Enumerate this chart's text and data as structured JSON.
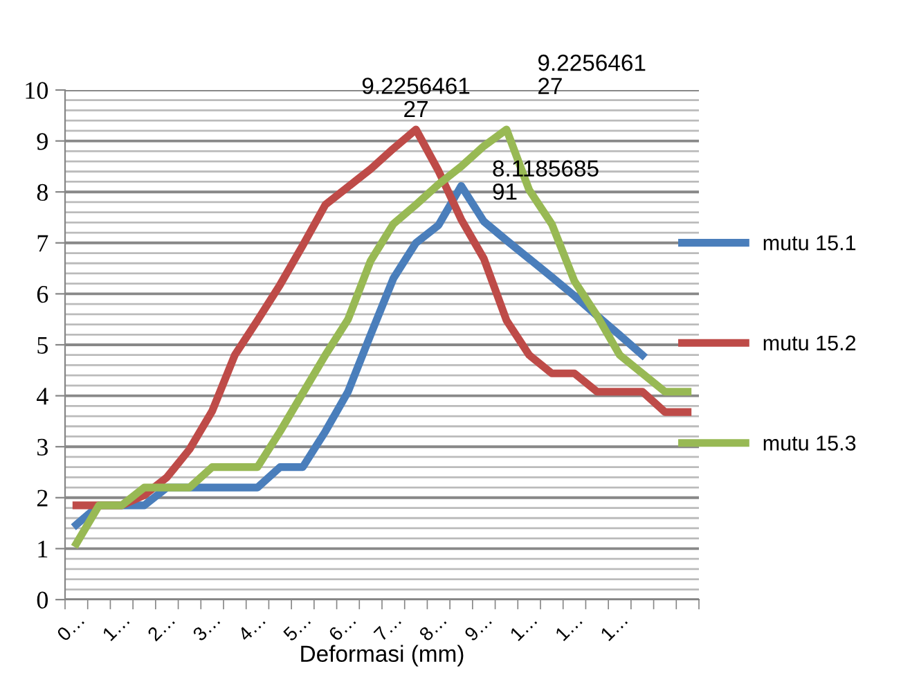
{
  "chart_data": {
    "type": "line",
    "xlabel": "Deformasi (mm)",
    "categories": [
      "0…",
      null,
      "1…",
      null,
      "2…",
      null,
      "3…",
      null,
      "4…",
      null,
      "5…",
      null,
      "6…",
      null,
      "7…",
      null,
      "8…",
      null,
      "9…",
      null,
      "1…",
      null,
      "1…",
      null,
      "1…",
      null,
      null,
      null
    ],
    "series": [
      {
        "name": "mutu 15.1",
        "color": "#4a7ebb",
        "values": [
          1.47,
          1.85,
          1.85,
          1.85,
          2.2,
          2.2,
          2.2,
          2.2,
          2.2,
          2.6,
          2.6,
          3.3,
          4.08,
          5.2,
          6.3,
          7.0,
          7.35,
          8.118568591,
          7.42,
          7.05,
          6.69,
          6.33,
          5.96,
          5.57,
          5.19,
          4.8,
          null,
          null
        ],
        "value_labels": [
          null,
          null,
          null,
          null,
          null,
          null,
          null,
          null,
          null,
          null,
          null,
          null,
          null,
          null,
          null,
          null,
          null,
          "8.118568591",
          null,
          null,
          null,
          null,
          null,
          null,
          null,
          null,
          null,
          null
        ]
      },
      {
        "name": "mutu 15.2",
        "color": "#be4b48",
        "values": [
          1.85,
          1.85,
          1.85,
          2.05,
          2.4,
          2.95,
          3.7,
          4.8,
          5.48,
          6.18,
          6.95,
          7.75,
          8.1,
          8.45,
          8.85,
          9.225646127,
          8.41,
          7.46,
          6.69,
          5.48,
          4.8,
          4.44,
          4.44,
          4.08,
          4.08,
          4.08,
          3.68,
          3.68
        ],
        "value_labels": [
          null,
          null,
          null,
          null,
          null,
          null,
          null,
          null,
          null,
          null,
          null,
          null,
          null,
          null,
          null,
          "9.225646127",
          null,
          null,
          null,
          null,
          null,
          null,
          null,
          null,
          null,
          null,
          null,
          null
        ]
      },
      {
        "name": "mutu 15.3",
        "color": "#98b954",
        "values": [
          1.1,
          1.85,
          1.85,
          2.2,
          2.2,
          2.2,
          2.6,
          2.6,
          2.6,
          3.3,
          4.05,
          4.8,
          5.5,
          6.65,
          7.37,
          7.75,
          8.15,
          8.5,
          8.9,
          9.225646127,
          8.04,
          7.37,
          6.25,
          5.57,
          4.8,
          4.44,
          4.08,
          4.08
        ],
        "value_labels": [
          null,
          null,
          null,
          null,
          null,
          null,
          null,
          null,
          null,
          null,
          null,
          null,
          null,
          null,
          null,
          null,
          null,
          null,
          null,
          "9.225646127",
          null,
          null,
          null,
          null,
          null,
          null,
          null,
          null
        ]
      }
    ],
    "ylim": [
      0,
      10
    ],
    "yticks": [
      0,
      1,
      2,
      3,
      4,
      5,
      6,
      7,
      8,
      9,
      10
    ],
    "grid": "y",
    "legend": "right",
    "marker": "none",
    "line_style": "solid"
  }
}
